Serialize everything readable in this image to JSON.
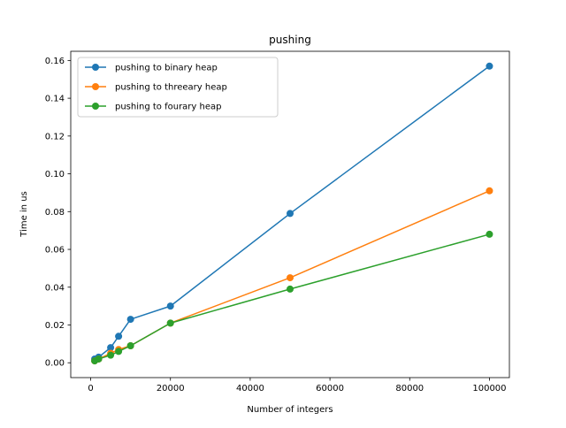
{
  "chart_data": {
    "type": "line",
    "title": "pushing",
    "xlabel": "Number of integers",
    "ylabel": "Time in us",
    "xlim": [
      -5000,
      105000
    ],
    "ylim": [
      -0.00785,
      0.16485
    ],
    "xticks": [
      0,
      20000,
      40000,
      60000,
      80000,
      100000
    ],
    "xtick_labels": [
      "0",
      "20000",
      "40000",
      "60000",
      "80000",
      "100000"
    ],
    "yticks": [
      0.0,
      0.02,
      0.04,
      0.06,
      0.08,
      0.1,
      0.12,
      0.14,
      0.16
    ],
    "ytick_labels": [
      "0.00",
      "0.02",
      "0.04",
      "0.06",
      "0.08",
      "0.10",
      "0.12",
      "0.14",
      "0.16"
    ],
    "grid": false,
    "legend_position": "top-left",
    "x": [
      1000,
      2000,
      5000,
      7000,
      10000,
      20000,
      50000,
      100000
    ],
    "series": [
      {
        "name": "pushing to binary heap",
        "color": "#1f77b4",
        "values": [
          0.002,
          0.003,
          0.008,
          0.014,
          0.023,
          0.03,
          0.079,
          0.157
        ]
      },
      {
        "name": "pushing to threeary heap",
        "color": "#ff7f0e",
        "values": [
          0.001,
          0.002,
          0.005,
          0.007,
          0.009,
          0.021,
          0.045,
          0.091
        ]
      },
      {
        "name": "pushing to fourary heap",
        "color": "#2ca02c",
        "values": [
          0.001,
          0.002,
          0.004,
          0.006,
          0.009,
          0.021,
          0.039,
          0.068
        ]
      }
    ]
  }
}
